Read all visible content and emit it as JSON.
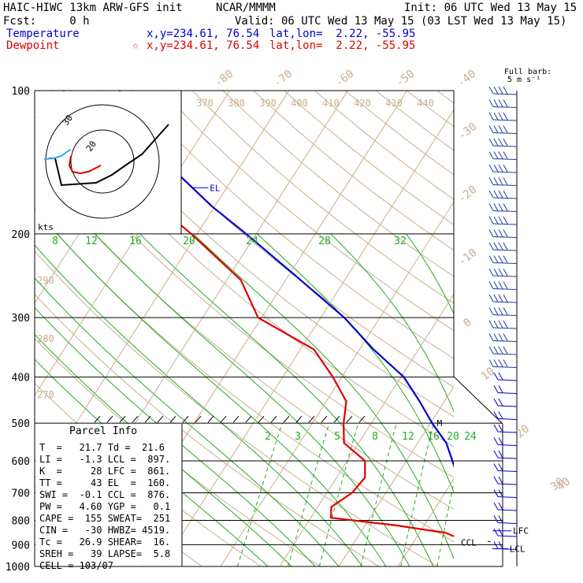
{
  "header": {
    "model": "HAIC-HIWC 13km ARW-GFS init",
    "org": "NCAR/MMMM",
    "init": "Init: 06 UTC Wed 13 May 15",
    "fcst": "Fcst:     0 h",
    "valid": "Valid: 06 UTC Wed 13 May 15 (03 LST Wed 13 May 15)",
    "temperature_label": "Temperature",
    "dewpoint_label": "Dewpoint",
    "temp_xy": "x,y=234.61, 76.54",
    "temp_latlon": "lat,lon=  2.22, -55.95",
    "dew_xy": "x,y=234.61, 76.54",
    "dew_latlon": "lat,lon=  2.22, -55.95",
    "dew_marker": "☆",
    "colors": {
      "temperature": "#0000cc",
      "dewpoint": "#dd0000",
      "dry_adiabat": "#c8ae8c",
      "moist_adiabat": "#22aa22",
      "mixing_ratio": "#22aa22"
    }
  },
  "barb_legend": {
    "title": "Full barb:",
    "value": "5 m s⁻¹"
  },
  "parcel_info": {
    "title": "Parcel Info",
    "rows": [
      "T  =   21.7 Td =  21.6",
      "LI =   -1.3 LCL =  897.",
      "K  =     28 LFC =  861.",
      "TT =     43 EL  =  160.",
      "SWI =  -0.1 CCL =  876.",
      "PW =   4.60 YGP =   0.1",
      "CAPE =  155 SWEAT=  251",
      "CIN =   -30 HWBZ= 4519.",
      "Tc =   26.9 SHEAR=  16.",
      "SREH =   39 LAPSE=  5.8",
      "CELL = 103/07"
    ]
  },
  "hodograph": {
    "units_label": "kts",
    "ring_label_1": "30",
    "ring_label_2": "20"
  },
  "chart_data": {
    "type": "line",
    "title": "HAIC-HIWC 13km ARW-GFS init",
    "y_axis": {
      "label": "",
      "scale": "log",
      "range": [
        1000,
        100
      ],
      "ticks": [
        100,
        200,
        300,
        400,
        500,
        600,
        700,
        800,
        900,
        1000
      ]
    },
    "x_axis": {
      "label": "",
      "skew": true
    },
    "series": [
      {
        "name": "Temperature",
        "color": "#0000cc",
        "points": [
          [
            1000,
            24.0
          ],
          [
            960,
            26.0
          ],
          [
            925,
            24.3
          ],
          [
            900,
            23.6
          ],
          [
            850,
            22.4
          ],
          [
            800,
            20.2
          ],
          [
            750,
            18.0
          ],
          [
            700,
            13.9
          ],
          [
            650,
            10.5
          ],
          [
            600,
            7.8
          ],
          [
            550,
            4.8
          ],
          [
            500,
            0.3
          ],
          [
            450,
            -4.2
          ],
          [
            400,
            -9.5
          ],
          [
            350,
            -17.6
          ],
          [
            300,
            -26.0
          ],
          [
            250,
            -37.5
          ],
          [
            200,
            -51.7
          ],
          [
            175,
            -60.5
          ],
          [
            150,
            -69.6
          ],
          [
            125,
            -79.5
          ],
          [
            110,
            -86.5
          ],
          [
            100,
            -88.6
          ]
        ]
      },
      {
        "name": "Dewpoint",
        "color": "#dd0000",
        "points": [
          [
            1000,
            21.6
          ],
          [
            960,
            21.8
          ],
          [
            925,
            21.3
          ],
          [
            900,
            20.5
          ],
          [
            850,
            14.5
          ],
          [
            820,
            5.3
          ],
          [
            790,
            -6.6
          ],
          [
            750,
            -7.7
          ],
          [
            700,
            -5.7
          ],
          [
            650,
            -5.2
          ],
          [
            600,
            -7.0
          ],
          [
            550,
            -12.5
          ],
          [
            500,
            -14.7
          ],
          [
            450,
            -16.6
          ],
          [
            400,
            -21.5
          ],
          [
            350,
            -27.7
          ],
          [
            300,
            -40.6
          ],
          [
            250,
            -47.6
          ],
          [
            200,
            -61.0
          ],
          [
            175,
            -69.5
          ],
          [
            150,
            -76.2
          ],
          [
            125,
            -85.2
          ],
          [
            110,
            -92.7
          ],
          [
            100,
            -98.2
          ]
        ]
      }
    ],
    "annotations": [
      {
        "text": "EL",
        "p": 160
      },
      {
        "text": "M",
        "p": 500
      },
      {
        "text": "LFC",
        "p": 861
      },
      {
        "text": "LCL",
        "p": 897
      },
      {
        "text": "CCL",
        "p": 876
      }
    ],
    "temperature_top_labels": [
      "-80",
      "-70",
      "-60",
      "-50",
      "-40"
    ],
    "temperature_side_labels": [
      "-30",
      "-20",
      "-10",
      "0",
      "10",
      "20",
      "30",
      "40"
    ],
    "theta_labels": [
      "370",
      "380",
      "390",
      "400",
      "410",
      "420",
      "430",
      "440"
    ],
    "theta_left_labels": [
      "290",
      "280",
      "270"
    ],
    "moist_adiabat_labels": [
      "8",
      "12",
      "16",
      "20",
      "24",
      "28",
      "32"
    ],
    "mixing_ratio_labels": [
      "2",
      "3",
      "5",
      "8",
      "12",
      "16",
      "20",
      "24"
    ]
  }
}
